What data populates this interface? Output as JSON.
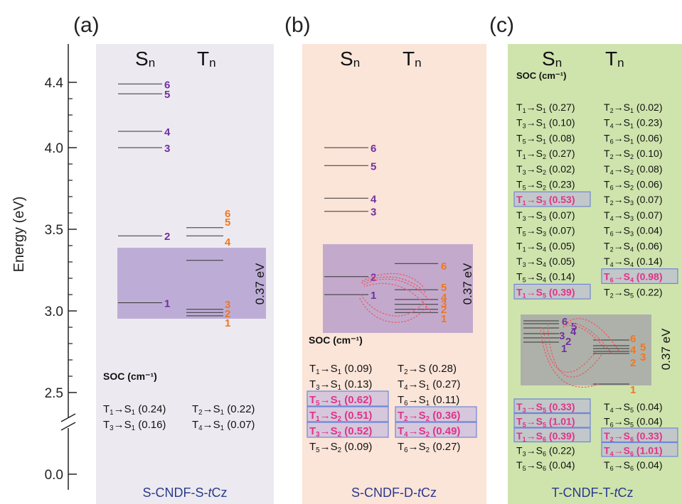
{
  "axis": {
    "label": "Energy (eV)",
    "ticks": [
      {
        "label": "4.4",
        "value": 4.4
      },
      {
        "label": "4.0",
        "value": 4.0
      },
      {
        "label": "3.5",
        "value": 3.5
      },
      {
        "label": "3.0",
        "value": 3.0
      },
      {
        "label": "2.5",
        "value": 2.5
      },
      {
        "label": "0.0",
        "value": 0.0
      }
    ]
  },
  "colors": {
    "singlet": "#7030a0",
    "triplet": "#ee7722",
    "highlight": "#e0338a",
    "panel_a_bg": "#eceaf0",
    "panel_b_bg": "#fbe4d8",
    "panel_c_bg": "#cfe4ad",
    "band": "#9e84c4",
    "band_c": "#a8a8a8",
    "title": "#2a3a8c"
  },
  "panels": [
    {
      "letter": "(a)",
      "name_prefix": "S-CNDF-S-",
      "name_italic": "t",
      "name_suffix": "Cz",
      "s_header": "S",
      "t_header": "T",
      "sub": "n",
      "gap_label": "0.37 eV",
      "soc_label": "SOC (cm⁻¹)",
      "singlets": [
        {
          "label": "1",
          "value": 3.05
        },
        {
          "label": "2",
          "value": 3.46
        },
        {
          "label": "3",
          "value": 4.0
        },
        {
          "label": "4",
          "value": 4.1
        },
        {
          "label": "5",
          "value": 4.33
        },
        {
          "label": "6",
          "value": 4.39
        }
      ],
      "triplets": [
        {
          "label": "1",
          "value": 2.97
        },
        {
          "label": "2",
          "value": 2.99
        },
        {
          "label": "3",
          "value": 3.01
        },
        {
          "label": "4",
          "value": 3.31
        },
        {
          "label": "5",
          "value": 3.46
        },
        {
          "label": "6",
          "value": 3.51
        }
      ],
      "soc_rows": [
        [
          {
            "from": "T",
            "fs": "1",
            "to": "S",
            "ts": "1",
            "val": "(0.24)",
            "hl": false
          },
          {
            "from": "T",
            "fs": "2",
            "to": "S",
            "ts": "1",
            "val": "(0.22)",
            "hl": false
          }
        ],
        [
          {
            "from": "T",
            "fs": "3",
            "to": "S",
            "ts": "1",
            "val": "(0.16)",
            "hl": false
          },
          {
            "from": "T",
            "fs": "4",
            "to": "S",
            "ts": "1",
            "val": "(0.07)",
            "hl": false
          }
        ]
      ]
    },
    {
      "letter": "(b)",
      "name_prefix": "S-CNDF-D-",
      "name_italic": "t",
      "name_suffix": "Cz",
      "s_header": "S",
      "t_header": "T",
      "sub": "n",
      "gap_label": "0.37 eV",
      "soc_label": "SOC (cm⁻¹)",
      "singlets": [
        {
          "label": "1",
          "value": 3.1
        },
        {
          "label": "2",
          "value": 3.21
        },
        {
          "label": "3",
          "value": 3.61
        },
        {
          "label": "4",
          "value": 3.69
        },
        {
          "label": "5",
          "value": 3.89
        },
        {
          "label": "6",
          "value": 4.0
        }
      ],
      "triplets": [
        {
          "label": "1",
          "value": 2.99
        },
        {
          "label": "2",
          "value": 3.01
        },
        {
          "label": "3",
          "value": 3.04
        },
        {
          "label": "4",
          "value": 3.07
        },
        {
          "label": "5",
          "value": 3.13
        },
        {
          "label": "6",
          "value": 3.29
        }
      ],
      "soc_rows": [
        [
          {
            "from": "T",
            "fs": "1",
            "to": "S",
            "ts": "1",
            "val": "(0.09)",
            "hl": false
          },
          {
            "from": "T",
            "fs": "2",
            "to": "S",
            "ts": "",
            "val": "(0.28)",
            "hl": false
          }
        ],
        [
          {
            "from": "T",
            "fs": "3",
            "to": "S",
            "ts": "1",
            "val": "(0.13)",
            "hl": false
          },
          {
            "from": "T",
            "fs": "4",
            "to": "S",
            "ts": "1",
            "val": "(0.27)",
            "hl": false
          }
        ],
        [
          {
            "from": "T",
            "fs": "5",
            "to": "S",
            "ts": "1",
            "val": "(0.62)",
            "hl": true
          },
          {
            "from": "T",
            "fs": "6",
            "to": "S",
            "ts": "1",
            "val": "(0.11)",
            "hl": false
          }
        ],
        [
          {
            "from": "T",
            "fs": "1",
            "to": "S",
            "ts": "2",
            "val": "(0.51)",
            "hl": true
          },
          {
            "from": "T",
            "fs": "2",
            "to": "S",
            "ts": "2",
            "val": "(0.36)",
            "hl": true
          }
        ],
        [
          {
            "from": "T",
            "fs": "3",
            "to": "S",
            "ts": "2",
            "val": "(0.52)",
            "hl": true
          },
          {
            "from": "T",
            "fs": "4",
            "to": "S",
            "ts": "2",
            "val": "(0.49)",
            "hl": true
          }
        ],
        [
          {
            "from": "T",
            "fs": "5",
            "to": "S",
            "ts": "2",
            "val": "(0.09)",
            "hl": false
          },
          {
            "from": "T",
            "fs": "6",
            "to": "S",
            "ts": "2",
            "val": "(0.27)",
            "hl": false
          }
        ]
      ]
    },
    {
      "letter": "(c)",
      "name_prefix": "T-CNDF-T-",
      "name_italic": "t",
      "name_suffix": "Cz",
      "s_header": "S",
      "t_header": "T",
      "sub": "n",
      "gap_label": "0.37 eV",
      "soc_label": "SOC (cm⁻¹)",
      "singlets_labels": [
        "1",
        "2",
        "3",
        "4",
        "5",
        "6"
      ],
      "triplets_labels": [
        "1",
        "2",
        "3",
        "4",
        "5",
        "6"
      ],
      "soc_rows_top": [
        [
          {
            "from": "T",
            "fs": "1",
            "to": "S",
            "ts": "1",
            "val": "(0.27)",
            "hl": false
          },
          {
            "from": "T",
            "fs": "2",
            "to": "S",
            "ts": "1",
            "val": "(0.02)",
            "hl": false
          }
        ],
        [
          {
            "from": "T",
            "fs": "3",
            "to": "S",
            "ts": "1",
            "val": "(0.10)",
            "hl": false
          },
          {
            "from": "T",
            "fs": "4",
            "to": "S",
            "ts": "1",
            "val": "(0.23)",
            "hl": false
          }
        ],
        [
          {
            "from": "T",
            "fs": "5",
            "to": "S",
            "ts": "1",
            "val": "(0.08)",
            "hl": false
          },
          {
            "from": "T",
            "fs": "6",
            "to": "S",
            "ts": "1",
            "val": "(0.06)",
            "hl": false
          }
        ],
        [
          {
            "from": "T",
            "fs": "1",
            "to": "S",
            "ts": "2",
            "val": "(0.27)",
            "hl": false
          },
          {
            "from": "T",
            "fs": "2",
            "to": "S",
            "ts": "2",
            "val": "(0.10)",
            "hl": false
          }
        ],
        [
          {
            "from": "T",
            "fs": "3",
            "to": "S",
            "ts": "2",
            "val": "(0.02)",
            "hl": false
          },
          {
            "from": "T",
            "fs": "4",
            "to": "S",
            "ts": "2",
            "val": "(0.08)",
            "hl": false
          }
        ],
        [
          {
            "from": "T",
            "fs": "5",
            "to": "S",
            "ts": "2",
            "val": "(0.23)",
            "hl": false
          },
          {
            "from": "T",
            "fs": "6",
            "to": "S",
            "ts": "2",
            "val": "(0.06)",
            "hl": false
          }
        ],
        [
          {
            "from": "T",
            "fs": "1",
            "to": "S",
            "ts": "3",
            "val": "(0.53)",
            "hl": true
          },
          {
            "from": "T",
            "fs": "2",
            "to": "S",
            "ts": "3",
            "val": "(0.07)",
            "hl": false
          }
        ],
        [
          {
            "from": "T",
            "fs": "3",
            "to": "S",
            "ts": "3",
            "val": "(0.07)",
            "hl": false
          },
          {
            "from": "T",
            "fs": "4",
            "to": "S",
            "ts": "3",
            "val": "(0.07)",
            "hl": false
          }
        ],
        [
          {
            "from": "T",
            "fs": "5",
            "to": "S",
            "ts": "3",
            "val": "(0.07)",
            "hl": false
          },
          {
            "from": "T",
            "fs": "6",
            "to": "S",
            "ts": "3",
            "val": "(0.04)",
            "hl": false
          }
        ],
        [
          {
            "from": "T",
            "fs": "1",
            "to": "S",
            "ts": "4",
            "val": "(0.05)",
            "hl": false
          },
          {
            "from": "T",
            "fs": "2",
            "to": "S",
            "ts": "4",
            "val": "(0.06)",
            "hl": false
          }
        ],
        [
          {
            "from": "T",
            "fs": "3",
            "to": "S",
            "ts": "4",
            "val": "(0.05)",
            "hl": false
          },
          {
            "from": "T",
            "fs": "4",
            "to": "S",
            "ts": "4",
            "val": "(0.14)",
            "hl": false
          }
        ],
        [
          {
            "from": "T",
            "fs": "5",
            "to": "S",
            "ts": "4",
            "val": "(0.14)",
            "hl": false
          },
          {
            "from": "T",
            "fs": "6",
            "to": "S",
            "ts": "4",
            "val": "(0.98)",
            "hl": true
          }
        ],
        [
          {
            "from": "T",
            "fs": "1",
            "to": "S",
            "ts": "5",
            "val": "(0.39)",
            "hl": true
          },
          {
            "from": "T",
            "fs": "2",
            "to": "S",
            "ts": "5",
            "val": "(0.22)",
            "hl": false
          }
        ]
      ],
      "soc_rows_bottom": [
        [
          {
            "from": "T",
            "fs": "3",
            "to": "S",
            "ts": "5",
            "val": "(0.33)",
            "hl": true
          },
          {
            "from": "T",
            "fs": "4",
            "to": "S",
            "ts": "5",
            "val": "(0.04)",
            "hl": false
          }
        ],
        [
          {
            "from": "T",
            "fs": "5",
            "to": "S",
            "ts": "5",
            "val": "(1.01)",
            "hl": true
          },
          {
            "from": "T",
            "fs": "6",
            "to": "S",
            "ts": "5",
            "val": "(0.04)",
            "hl": false
          }
        ],
        [
          {
            "from": "T",
            "fs": "1",
            "to": "S",
            "ts": "6",
            "val": "(0.39)",
            "hl": true
          },
          {
            "from": "T",
            "fs": "2",
            "to": "S",
            "ts": "6",
            "val": "(0.33)",
            "hl": true
          }
        ],
        [
          {
            "from": "T",
            "fs": "3",
            "to": "S",
            "ts": "6",
            "val": "(0.22)",
            "hl": false
          },
          {
            "from": "T",
            "fs": "4",
            "to": "S",
            "ts": "6",
            "val": "(1.01)",
            "hl": true
          }
        ],
        [
          {
            "from": "T",
            "fs": "5",
            "to": "S",
            "ts": "6",
            "val": "(0.04)",
            "hl": false
          },
          {
            "from": "T",
            "fs": "6",
            "to": "S",
            "ts": "6",
            "val": "(0.04)",
            "hl": false
          }
        ]
      ]
    }
  ]
}
